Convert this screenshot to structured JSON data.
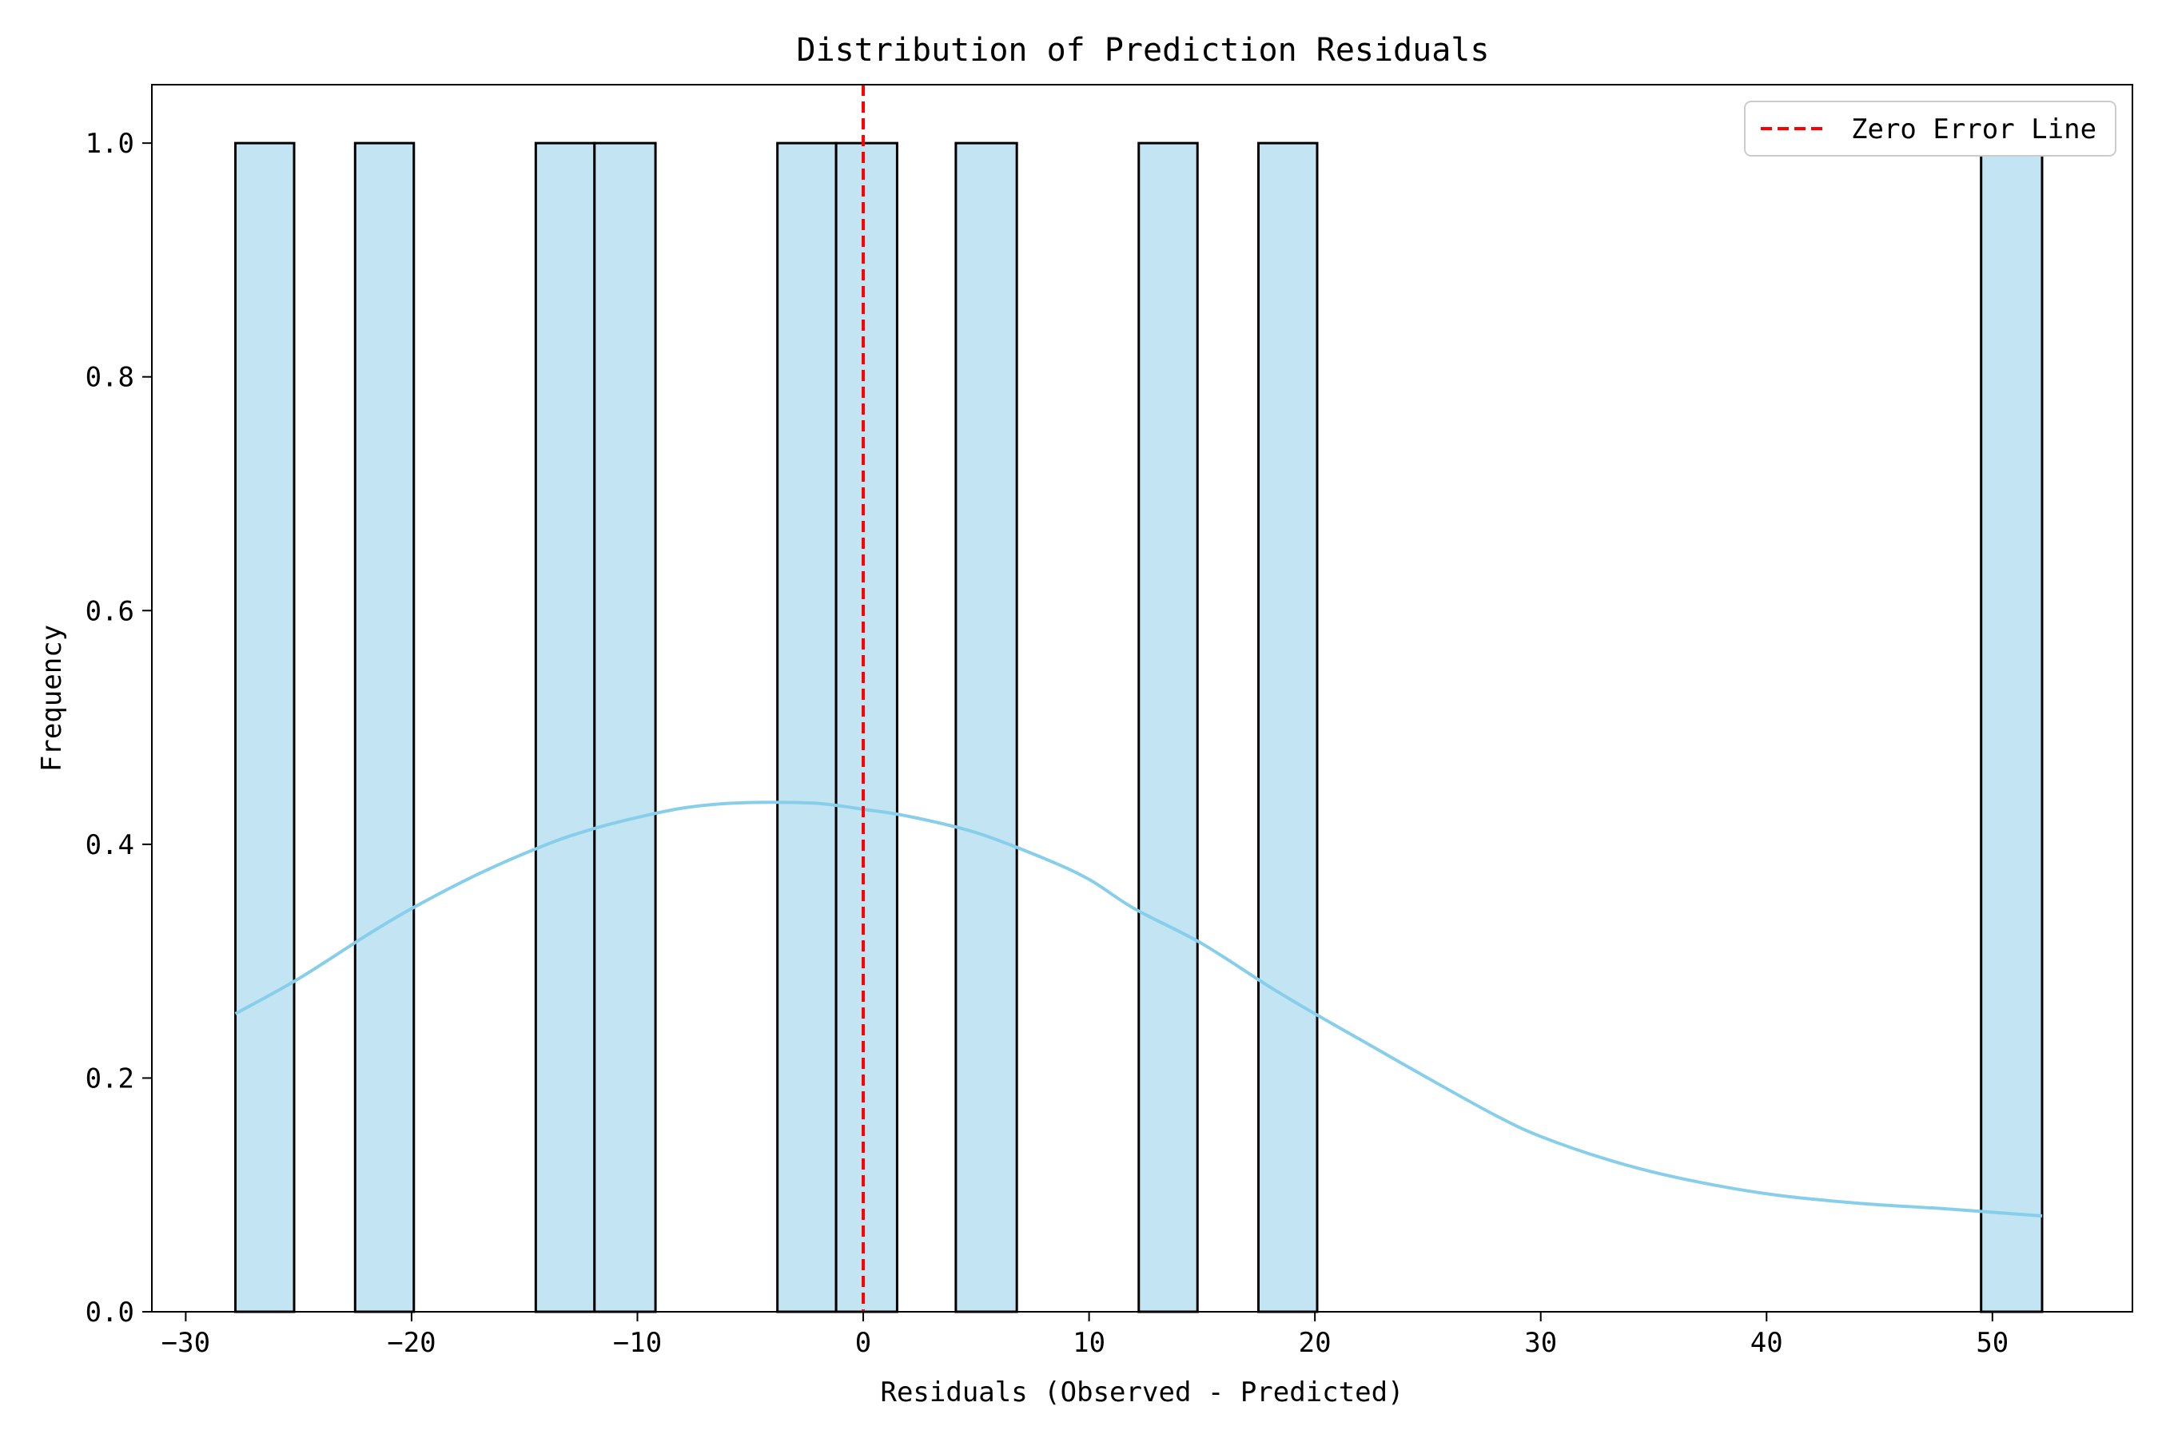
{
  "chart_data": {
    "type": "bar",
    "title": "Distribution of Prediction Residuals",
    "xlabel": "Residuals (Observed - Predicted)",
    "ylabel": "Frequency",
    "xlim": [
      -31.5,
      56.2
    ],
    "ylim": [
      0,
      1.05
    ],
    "xticks": [
      -30,
      -20,
      -10,
      0,
      10,
      20,
      30,
      40,
      50
    ],
    "xtick_labels": [
      "−30",
      "−20",
      "−10",
      "0",
      "10",
      "20",
      "30",
      "40",
      "50"
    ],
    "yticks": [
      0,
      0.2,
      0.4,
      0.6,
      0.8,
      1.0
    ],
    "ytick_labels": [
      "0.0",
      "0.2",
      "0.4",
      "0.6",
      "0.8",
      "1.0"
    ],
    "bars": [
      {
        "x0": -27.8,
        "x1": -25.2,
        "value": 1
      },
      {
        "x0": -22.5,
        "x1": -19.9,
        "value": 1
      },
      {
        "x0": -14.5,
        "x1": -11.9,
        "value": 1
      },
      {
        "x0": -11.9,
        "x1": -9.2,
        "value": 1
      },
      {
        "x0": -3.8,
        "x1": -1.2,
        "value": 1
      },
      {
        "x0": -1.2,
        "x1": 1.5,
        "value": 1
      },
      {
        "x0": 4.1,
        "x1": 6.8,
        "value": 1
      },
      {
        "x0": 12.2,
        "x1": 14.8,
        "value": 1
      },
      {
        "x0": 17.5,
        "x1": 20.1,
        "value": 1
      },
      {
        "x0": 49.5,
        "x1": 52.2,
        "value": 1
      }
    ],
    "kde": {
      "x": [
        -27.8,
        -25,
        -22,
        -20,
        -17,
        -14,
        -12,
        -10,
        -8,
        -6,
        -4,
        -2,
        0,
        2,
        5,
        8,
        10,
        12,
        15,
        18,
        20,
        22,
        25,
        28,
        30,
        33,
        36,
        40,
        44,
        48,
        52.2
      ],
      "y": [
        0.255,
        0.285,
        0.322,
        0.345,
        0.375,
        0.4,
        0.413,
        0.423,
        0.431,
        0.435,
        0.436,
        0.435,
        0.43,
        0.424,
        0.41,
        0.388,
        0.37,
        0.345,
        0.315,
        0.278,
        0.255,
        0.233,
        0.2,
        0.168,
        0.15,
        0.13,
        0.115,
        0.101,
        0.093,
        0.088,
        0.082
      ]
    },
    "reference_line": {
      "x": 0,
      "label": "Zero Error Line",
      "color": "#ff0000",
      "style": "dashed"
    },
    "colors": {
      "bar_fill": "#c2e4f3",
      "bar_edge": "#000000",
      "kde": "#87ceeb",
      "reference": "#ff0000"
    },
    "legend": {
      "position": "top-right",
      "entries": [
        "Zero Error Line"
      ]
    },
    "grid": false
  }
}
